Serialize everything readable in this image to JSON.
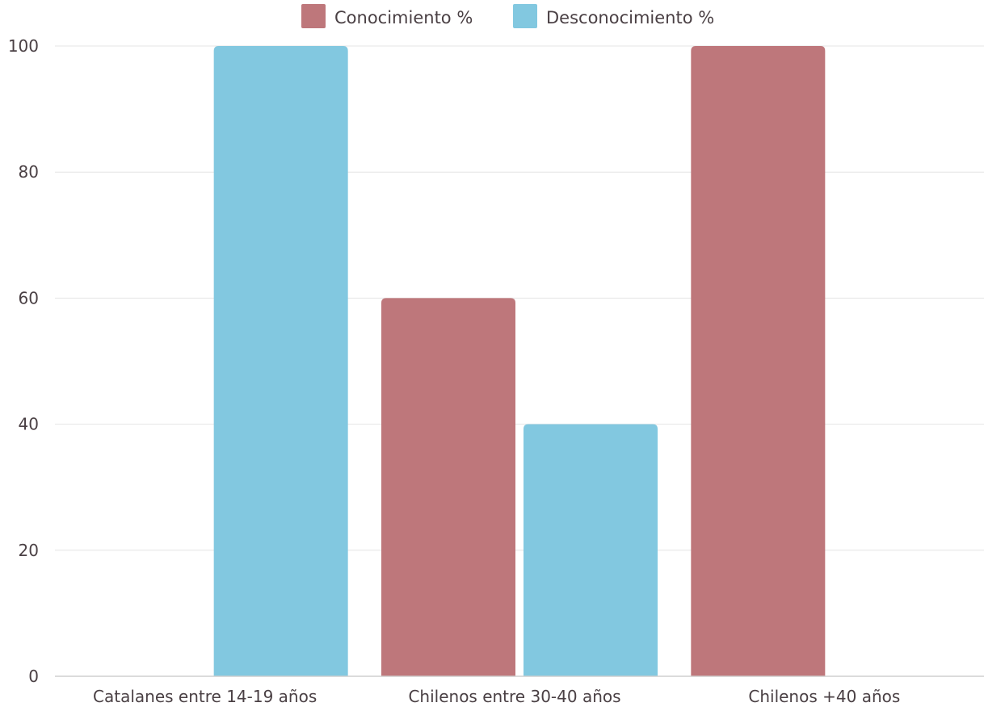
{
  "chart_data": {
    "type": "bar",
    "categories": [
      "Catalanes entre 14-19 años",
      "Chilenos entre 30-40 años",
      "Chilenos +40 años"
    ],
    "series": [
      {
        "name": "Conocimiento %",
        "values": [
          0,
          60,
          100
        ],
        "color": "#be777b"
      },
      {
        "name": "Desconocimiento %",
        "values": [
          100,
          40,
          0
        ],
        "color": "#82c8e0"
      }
    ],
    "y_ticks": [
      0,
      20,
      40,
      60,
      80,
      100
    ],
    "ylim": [
      0,
      100
    ],
    "grid": true,
    "legend_position": "top-center"
  }
}
